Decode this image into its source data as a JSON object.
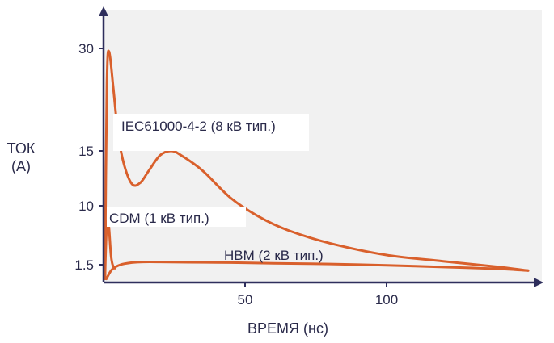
{
  "chart_data": {
    "type": "line",
    "xlabel": "ВРЕМЯ (нс)",
    "ylabel_lines": [
      "ТОК",
      "(А)"
    ],
    "x_ticks": [
      {
        "value": 50,
        "label": "50"
      },
      {
        "value": 100,
        "label": "100"
      }
    ],
    "y_ticks": [
      {
        "value": 1.5,
        "label": "1.5"
      },
      {
        "value": 10,
        "label": "10"
      },
      {
        "value": 15,
        "label": "15"
      },
      {
        "value": 30,
        "label": "30"
      }
    ],
    "colors": {
      "axis": "#2e2e5c",
      "series": "#d9602c",
      "label_bg": "#ffffff",
      "plot_bg": "#f1f1f1"
    },
    "series": [
      {
        "name": "IEC61000-4-2 (8 кВ тип.)",
        "x": [
          0.5,
          1.2,
          2.0,
          3.5,
          5,
          7,
          10,
          13,
          16,
          20,
          24,
          28,
          35,
          45,
          55,
          65,
          80,
          100,
          120,
          140,
          150
        ],
        "y": [
          0.5,
          25,
          29.5,
          24,
          18,
          14,
          12,
          12.1,
          13.2,
          14.6,
          15,
          14.5,
          13.2,
          10.7,
          8.4,
          6.5,
          4.6,
          2.9,
          2.0,
          1.3,
          1.0
        ]
      },
      {
        "name": "CDM (1 кВ тип.)",
        "x": [
          0.5,
          1.0,
          1.5,
          2.0,
          2.6,
          3.2,
          4
        ],
        "y": [
          0.3,
          6,
          8,
          6.5,
          3,
          1.5,
          1.2
        ]
      },
      {
        "name": "HBM (2 кВ тип.)",
        "x": [
          1,
          3,
          6,
          10,
          14,
          20,
          30,
          45,
          60,
          80,
          100,
          120,
          140,
          150
        ],
        "y": [
          0.3,
          1.1,
          1.5,
          1.8,
          1.9,
          1.9,
          1.85,
          1.8,
          1.7,
          1.6,
          1.45,
          1.3,
          1.15,
          1.0
        ]
      }
    ]
  }
}
